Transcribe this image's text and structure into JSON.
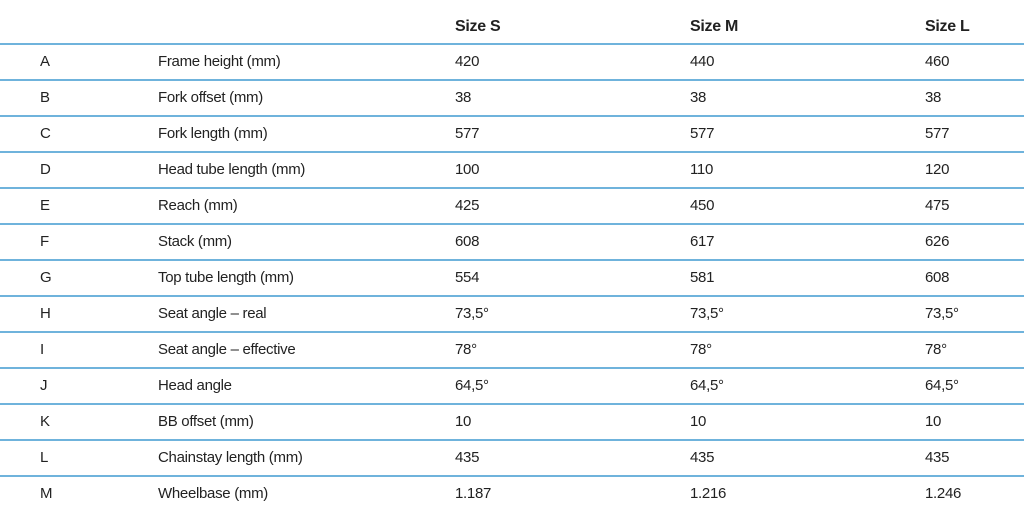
{
  "table": {
    "columns": [
      "Size S",
      "Size M",
      "Size L"
    ],
    "rows": [
      [
        "A",
        "Frame height  (mm)",
        "420",
        "440",
        "460"
      ],
      [
        "B",
        "Fork offset (mm)",
        "38",
        "38",
        "38"
      ],
      [
        "C",
        "Fork length (mm)",
        "577",
        "577",
        "577"
      ],
      [
        "D",
        "Head tube length (mm)",
        "100",
        "110",
        "120"
      ],
      [
        "E",
        "Reach (mm)",
        "425",
        "450",
        "475"
      ],
      [
        "F",
        "Stack (mm)",
        "608",
        "617",
        "626"
      ],
      [
        "G",
        "Top tube length (mm)",
        "554",
        "581",
        "608"
      ],
      [
        "H",
        "Seat angle – real",
        "73,5°",
        "73,5°",
        "73,5°"
      ],
      [
        "I",
        "Seat angle – effective",
        "78°",
        "78°",
        "78°"
      ],
      [
        "J",
        "Head angle",
        "64,5°",
        "64,5°",
        "64,5°"
      ],
      [
        "K",
        "BB offset (mm)",
        "10",
        "10",
        "10"
      ],
      [
        "L",
        "Chainstay length (mm)",
        "435",
        "435",
        "435"
      ],
      [
        "M",
        "Wheelbase (mm)",
        "1.187",
        "1.216",
        "1.246"
      ]
    ]
  }
}
